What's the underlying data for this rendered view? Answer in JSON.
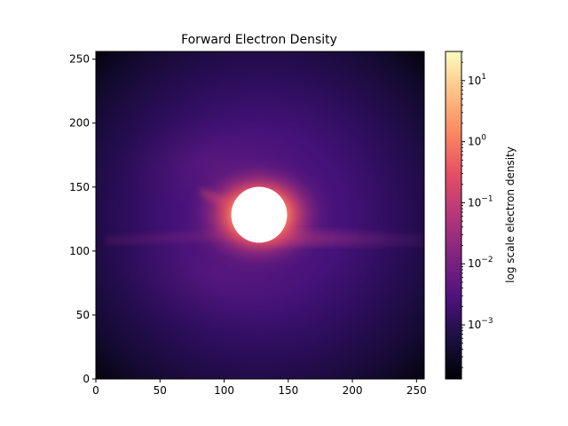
{
  "chart_data": {
    "type": "heatmap",
    "title": "Forward Electron Density",
    "xlabel": "",
    "ylabel": "",
    "xlim": [
      0,
      256
    ],
    "ylim": [
      0,
      256
    ],
    "x_ticks": [
      0,
      50,
      100,
      150,
      200,
      250
    ],
    "y_ticks": [
      0,
      50,
      100,
      150,
      200,
      250
    ],
    "x_tick_labels": [
      "0",
      "50",
      "100",
      "150",
      "200",
      "250"
    ],
    "y_tick_labels": [
      "0",
      "50",
      "100",
      "150",
      "200",
      "250"
    ],
    "colormap": "magma",
    "colorbar": {
      "label": "log scale electron density",
      "scale": "log",
      "range": [
        0.00013,
        30
      ],
      "ticks": [
        {
          "base": "10",
          "exp": "1",
          "value": 10
        },
        {
          "base": "10",
          "exp": "0",
          "value": 1
        },
        {
          "base": "10",
          "exp": "−1",
          "value": 0.1
        },
        {
          "base": "10",
          "exp": "−2",
          "value": 0.01
        },
        {
          "base": "10",
          "exp": "−3",
          "value": 0.001
        }
      ]
    },
    "features": {
      "masked_disc": {
        "center": [
          128,
          128
        ],
        "radius": 22,
        "color": "#ffffff"
      },
      "bright_halo": "high density ring surrounding the masked disc",
      "forward_streak": "horizontal band of elevated density extending right from the disc near y = 120"
    },
    "grid": false
  }
}
